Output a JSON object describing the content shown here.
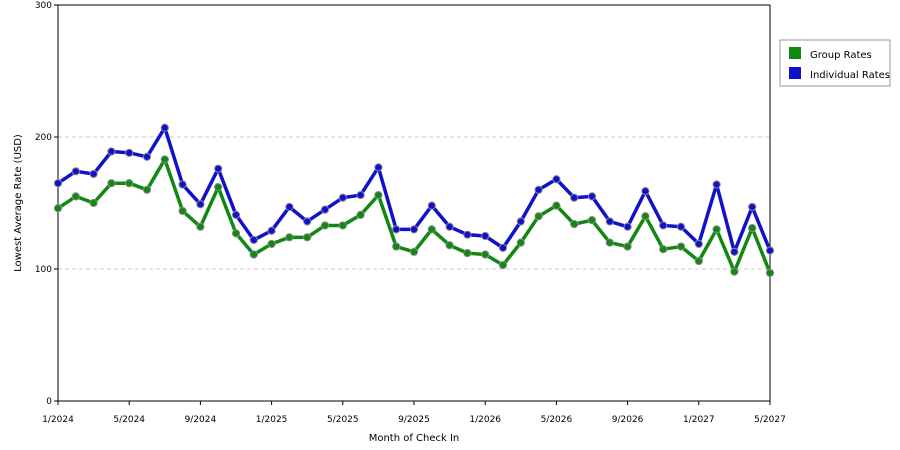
{
  "chart_data": {
    "type": "line",
    "title": "",
    "xlabel": "Month of Check In",
    "ylabel": "Lowest Average Rate (USD)",
    "ylim": [
      0,
      300
    ],
    "yticks": [
      0,
      100,
      200,
      300
    ],
    "grid": "horizontal-dashed",
    "legend_position": "right",
    "x": [
      "1/2024",
      "2/2024",
      "3/2024",
      "4/2024",
      "5/2024",
      "6/2024",
      "7/2024",
      "8/2024",
      "9/2024",
      "10/2024",
      "11/2024",
      "12/2024",
      "1/2025",
      "2/2025",
      "3/2025",
      "4/2025",
      "5/2025",
      "6/2025",
      "7/2025",
      "8/2025",
      "9/2025",
      "10/2025",
      "11/2025",
      "12/2025",
      "1/2026",
      "2/2026",
      "3/2026",
      "4/2026",
      "5/2026",
      "6/2026",
      "7/2026",
      "8/2026",
      "9/2026",
      "10/2026",
      "11/2026",
      "12/2026",
      "1/2027",
      "2/2027",
      "3/2027",
      "4/2027",
      "5/2027"
    ],
    "xtick_labels": [
      "1/2024",
      "5/2024",
      "9/2024",
      "1/2025",
      "5/2025",
      "9/2025",
      "1/2026",
      "5/2026",
      "9/2026",
      "1/2027",
      "5/2027"
    ],
    "series": [
      {
        "name": "Group Rates",
        "color": "#118811",
        "values": [
          146,
          155,
          150,
          165,
          165,
          160,
          183,
          144,
          132,
          162,
          127,
          111,
          119,
          124,
          124,
          133,
          133,
          141,
          156,
          117,
          113,
          130,
          118,
          112,
          111,
          103,
          120,
          140,
          148,
          134,
          137,
          120,
          117,
          140,
          115,
          117,
          106,
          130,
          98,
          131,
          97
        ]
      },
      {
        "name": "Individual Rates",
        "color": "#1111cc",
        "values": [
          165,
          174,
          172,
          189,
          188,
          185,
          207,
          164,
          149,
          176,
          141,
          122,
          129,
          147,
          136,
          145,
          154,
          156,
          177,
          130,
          130,
          148,
          132,
          126,
          125,
          116,
          136,
          160,
          168,
          154,
          155,
          136,
          132,
          159,
          133,
          132,
          119,
          164,
          113,
          147,
          114
        ]
      }
    ]
  }
}
